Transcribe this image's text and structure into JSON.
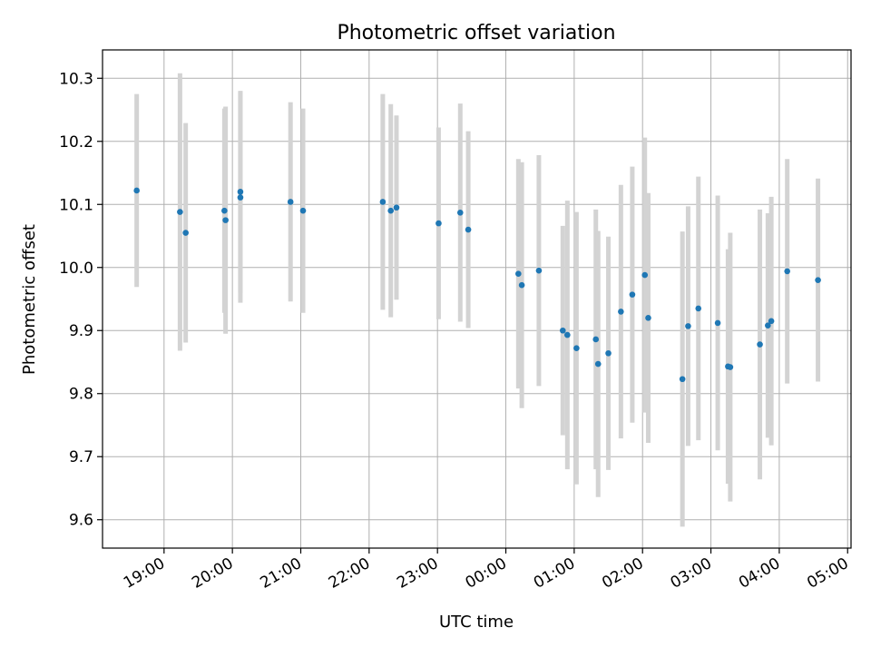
{
  "chart_data": {
    "type": "scatter",
    "title": "Photometric offset variation",
    "xlabel": "UTC time",
    "ylabel": "Photometric offset",
    "grid": true,
    "xlim": [
      "18:06",
      "05:03"
    ],
    "ylim": [
      9.555,
      10.345
    ],
    "x_ticks": [
      "19:00",
      "20:00",
      "21:00",
      "22:00",
      "23:00",
      "00:00",
      "01:00",
      "02:00",
      "03:00",
      "04:00",
      "05:00"
    ],
    "y_ticks": [
      9.6,
      9.7,
      9.8,
      9.9,
      10.0,
      10.1,
      10.2,
      10.3
    ],
    "y_tick_labels": [
      "9.6",
      "9.7",
      "9.8",
      "9.9",
      "10.0",
      "10.1",
      "10.2",
      "10.3"
    ],
    "colors": {
      "points": "#1f77b4",
      "error_bars": "#d3d3d3",
      "grid": "#b0b0b0"
    },
    "points": [
      {
        "t": "18:36",
        "y": 10.122,
        "err": 0.153
      },
      {
        "t": "19:14",
        "y": 10.088,
        "err": 0.22
      },
      {
        "t": "19:19",
        "y": 10.055,
        "err": 0.174
      },
      {
        "t": "19:53",
        "y": 10.09,
        "err": 0.162
      },
      {
        "t": "19:54",
        "y": 10.075,
        "err": 0.18
      },
      {
        "t": "20:07",
        "y": 10.12,
        "err": 0.16
      },
      {
        "t": "20:07",
        "y": 10.111,
        "err": 0.167
      },
      {
        "t": "20:51",
        "y": 10.104,
        "err": 0.158
      },
      {
        "t": "21:02",
        "y": 10.09,
        "err": 0.162
      },
      {
        "t": "22:12",
        "y": 10.104,
        "err": 0.171
      },
      {
        "t": "22:19",
        "y": 10.09,
        "err": 0.169
      },
      {
        "t": "22:24",
        "y": 10.095,
        "err": 0.146
      },
      {
        "t": "23:01",
        "y": 10.07,
        "err": 0.152
      },
      {
        "t": "23:20",
        "y": 10.087,
        "err": 0.173
      },
      {
        "t": "23:27",
        "y": 10.06,
        "err": 0.156
      },
      {
        "t": "00:11",
        "y": 9.99,
        "err": 0.182
      },
      {
        "t": "00:14",
        "y": 9.972,
        "err": 0.195
      },
      {
        "t": "00:29",
        "y": 9.995,
        "err": 0.183
      },
      {
        "t": "00:50",
        "y": 9.9,
        "err": 0.166
      },
      {
        "t": "00:54",
        "y": 9.893,
        "err": 0.213
      },
      {
        "t": "01:02",
        "y": 9.872,
        "err": 0.216
      },
      {
        "t": "01:19",
        "y": 9.886,
        "err": 0.206
      },
      {
        "t": "01:21",
        "y": 9.847,
        "err": 0.211
      },
      {
        "t": "01:30",
        "y": 9.864,
        "err": 0.185
      },
      {
        "t": "01:41",
        "y": 9.93,
        "err": 0.201
      },
      {
        "t": "01:51",
        "y": 9.957,
        "err": 0.203
      },
      {
        "t": "02:02",
        "y": 9.988,
        "err": 0.218
      },
      {
        "t": "02:05",
        "y": 9.92,
        "err": 0.198
      },
      {
        "t": "02:35",
        "y": 9.823,
        "err": 0.234
      },
      {
        "t": "02:40",
        "y": 9.907,
        "err": 0.19
      },
      {
        "t": "02:49",
        "y": 9.935,
        "err": 0.209
      },
      {
        "t": "03:06",
        "y": 9.912,
        "err": 0.202
      },
      {
        "t": "03:15",
        "y": 9.843,
        "err": 0.186
      },
      {
        "t": "03:17",
        "y": 9.842,
        "err": 0.213
      },
      {
        "t": "03:43",
        "y": 9.878,
        "err": 0.214
      },
      {
        "t": "03:50",
        "y": 9.908,
        "err": 0.178
      },
      {
        "t": "03:53",
        "y": 9.915,
        "err": 0.197
      },
      {
        "t": "04:07",
        "y": 9.994,
        "err": 0.178
      },
      {
        "t": "04:34",
        "y": 9.98,
        "err": 0.161
      }
    ]
  }
}
